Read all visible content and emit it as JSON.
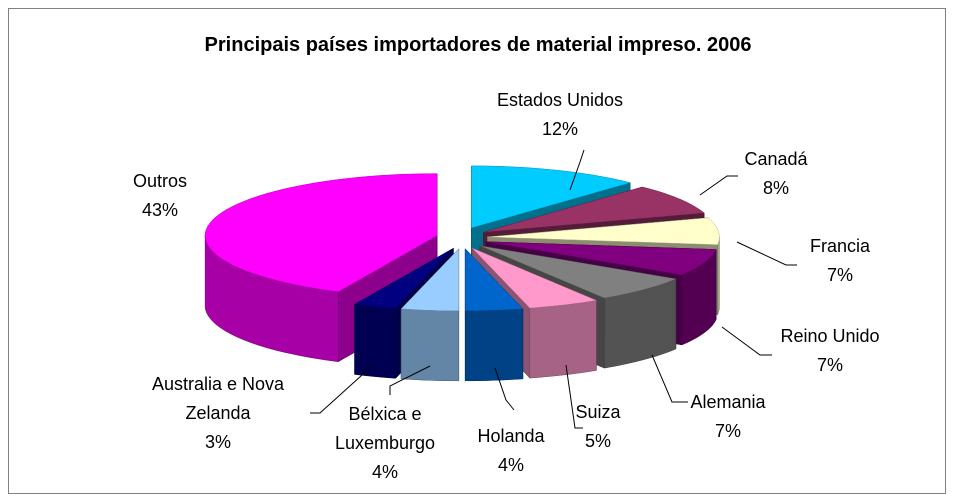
{
  "chart_data": {
    "type": "pie",
    "title": "Principais países importadores de material impreso. 2006",
    "categories": [
      "Estados Unidos",
      "Canadá",
      "Francia",
      "Reino Unido",
      "Alemania",
      "Suiza",
      "Holanda",
      "Bélxica e Luxemburgo",
      "Australia e Nova Zelanda",
      "Outros"
    ],
    "values": [
      12,
      8,
      7,
      7,
      7,
      5,
      4,
      4,
      3,
      43
    ],
    "value_labels": [
      "12%",
      "8%",
      "7%",
      "7%",
      "7%",
      "5%",
      "4%",
      "4%",
      "3%",
      "43%"
    ],
    "colors": [
      "#00ccff",
      "#993366",
      "#ffffcc",
      "#800080",
      "#808080",
      "#ff99cc",
      "#0066cc",
      "#99ccff",
      "#000080",
      "#ff00ff"
    ],
    "three_d": true,
    "exploded": true
  }
}
